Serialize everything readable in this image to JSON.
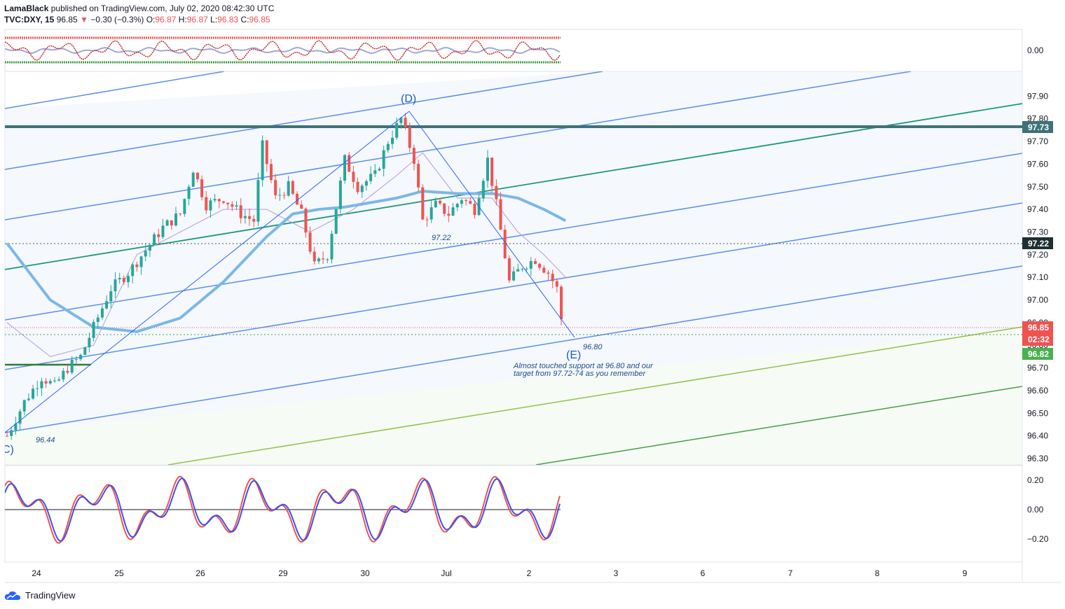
{
  "header": {
    "author": "LamaBlack",
    "published_text": "published on TradingView.com, July 02, 2020 08:42:30 UTC",
    "symbol": "TVC:DXY, 15",
    "last": "96.85",
    "change_arrow": "▼",
    "change": "−0.30 (−0.3%)",
    "o_label": "O:",
    "o": "96.87",
    "h_label": "H:",
    "h": "96.87",
    "l_label": "L:",
    "l": "96.83",
    "c_label": "C:",
    "c": "96.85"
  },
  "footer": {
    "brand": "TradingView",
    "icon": "tradingview-cloud-icon"
  },
  "colors": {
    "up": "#26a69a",
    "down": "#ef5350",
    "channel": "#5b8def",
    "green_line": "#1b9a76",
    "light_green": "#8bc34a",
    "dark_green": "#43a047",
    "resistance": "#3d7278",
    "ma": "#7ab8e8",
    "ma_thin": "#b39ddb"
  },
  "chart_data": [
    {
      "type": "line",
      "pane": "top-oscillator",
      "yticks": [
        0.0
      ],
      "ytick_labels": [
        "0.00"
      ]
    },
    {
      "type": "candlestick",
      "pane": "price",
      "x_labels": [
        "24",
        "25",
        "26",
        "29",
        "30",
        "Jul",
        "2",
        "3",
        "6",
        "7",
        "8",
        "9"
      ],
      "yticks": [
        96.3,
        96.4,
        96.5,
        96.6,
        96.7,
        96.8,
        96.9,
        97.0,
        97.1,
        97.2,
        97.3,
        97.4,
        97.5,
        97.6,
        97.7,
        97.8,
        97.9
      ],
      "ytick_labels": [
        "96.30",
        "96.40",
        "96.50",
        "96.60",
        "96.70",
        "96.80",
        "96.90",
        "97.00",
        "97.10",
        "97.20",
        "97.30",
        "97.40",
        "97.50",
        "97.60",
        "97.70",
        "97.80",
        "97.90"
      ],
      "ylim": [
        96.25,
        97.98
      ],
      "price_path": [
        [
          0,
          96.4
        ],
        [
          4,
          96.55
        ],
        [
          8,
          96.66
        ],
        [
          11,
          96.62
        ],
        [
          14,
          96.7
        ],
        [
          17,
          96.75
        ],
        [
          20,
          96.88
        ],
        [
          24,
          97.05
        ],
        [
          28,
          97.12
        ],
        [
          32,
          97.22
        ],
        [
          36,
          97.32
        ],
        [
          40,
          97.38
        ],
        [
          43,
          97.58
        ],
        [
          46,
          97.42
        ],
        [
          50,
          97.45
        ],
        [
          54,
          97.38
        ],
        [
          57,
          97.35
        ],
        [
          59,
          97.68
        ],
        [
          62,
          97.45
        ],
        [
          65,
          97.5
        ],
        [
          68,
          97.38
        ],
        [
          71,
          97.15
        ],
        [
          74,
          97.2
        ],
        [
          78,
          97.62
        ],
        [
          81,
          97.5
        ],
        [
          85,
          97.55
        ],
        [
          88,
          97.7
        ],
        [
          91,
          97.8
        ],
        [
          94,
          97.62
        ],
        [
          96,
          97.35
        ],
        [
          99,
          97.42
        ],
        [
          102,
          97.38
        ],
        [
          105,
          97.45
        ],
        [
          108,
          97.4
        ],
        [
          111,
          97.62
        ],
        [
          113,
          97.42
        ],
        [
          116,
          97.08
        ],
        [
          119,
          97.15
        ],
        [
          122,
          97.18
        ],
        [
          125,
          97.12
        ],
        [
          127,
          97.05
        ],
        [
          128.5,
          96.85
        ]
      ],
      "moving_average_thick": [
        [
          0,
          97.25
        ],
        [
          10,
          97.0
        ],
        [
          20,
          96.88
        ],
        [
          30,
          96.86
        ],
        [
          40,
          96.92
        ],
        [
          50,
          97.08
        ],
        [
          60,
          97.28
        ],
        [
          66,
          97.38
        ],
        [
          72,
          97.4
        ],
        [
          78,
          97.41
        ],
        [
          84,
          97.43
        ],
        [
          90,
          97.45
        ],
        [
          96,
          97.48
        ],
        [
          104,
          97.47
        ],
        [
          112,
          97.47
        ],
        [
          118,
          97.45
        ],
        [
          124,
          97.4
        ],
        [
          129,
          97.35
        ]
      ],
      "moving_average_thin": [
        [
          0,
          96.9
        ],
        [
          10,
          96.75
        ],
        [
          20,
          96.8
        ],
        [
          30,
          97.2
        ],
        [
          40,
          97.3
        ],
        [
          50,
          97.4
        ],
        [
          60,
          97.4
        ],
        [
          70,
          97.3
        ],
        [
          80,
          97.4
        ],
        [
          90,
          97.55
        ],
        [
          96,
          97.65
        ],
        [
          104,
          97.45
        ],
        [
          112,
          97.45
        ],
        [
          118,
          97.3
        ],
        [
          124,
          97.2
        ],
        [
          129,
          97.1
        ]
      ],
      "levels": [
        {
          "label": "97.73",
          "value": 97.73
        },
        {
          "label": "97.22",
          "value": 97.22
        },
        {
          "label": "96.85",
          "value": 96.85
        },
        {
          "label": "02:32",
          "value": 96.85
        },
        {
          "label": "96.82",
          "value": 96.82
        }
      ],
      "annotations": [
        {
          "text": "(D)",
          "x": 92,
          "y": 97.84
        },
        {
          "text": "(E)",
          "x": 132,
          "y": 96.75
        },
        {
          "text": "C)",
          "x": 0.3,
          "y": 96.33
        },
        {
          "text": "97.22",
          "x": 100,
          "y": 97.25
        },
        {
          "text": "96.80",
          "x": 134,
          "y": 96.79
        },
        {
          "text": "96.44",
          "x": 8,
          "y": 96.36
        },
        {
          "text": "Almost touched support at 96.80 and our",
          "x": 118,
          "y": 96.71
        },
        {
          "text": "target from 97.72-74 as you remember",
          "x": 118,
          "y": 96.67
        }
      ]
    },
    {
      "type": "line",
      "pane": "bottom-oscillator",
      "yticks": [
        0.2,
        0.0,
        -0.2
      ],
      "ytick_labels": [
        "0.20",
        "0.00",
        "−0.20"
      ],
      "ylim": [
        -0.33,
        0.23
      ]
    }
  ]
}
